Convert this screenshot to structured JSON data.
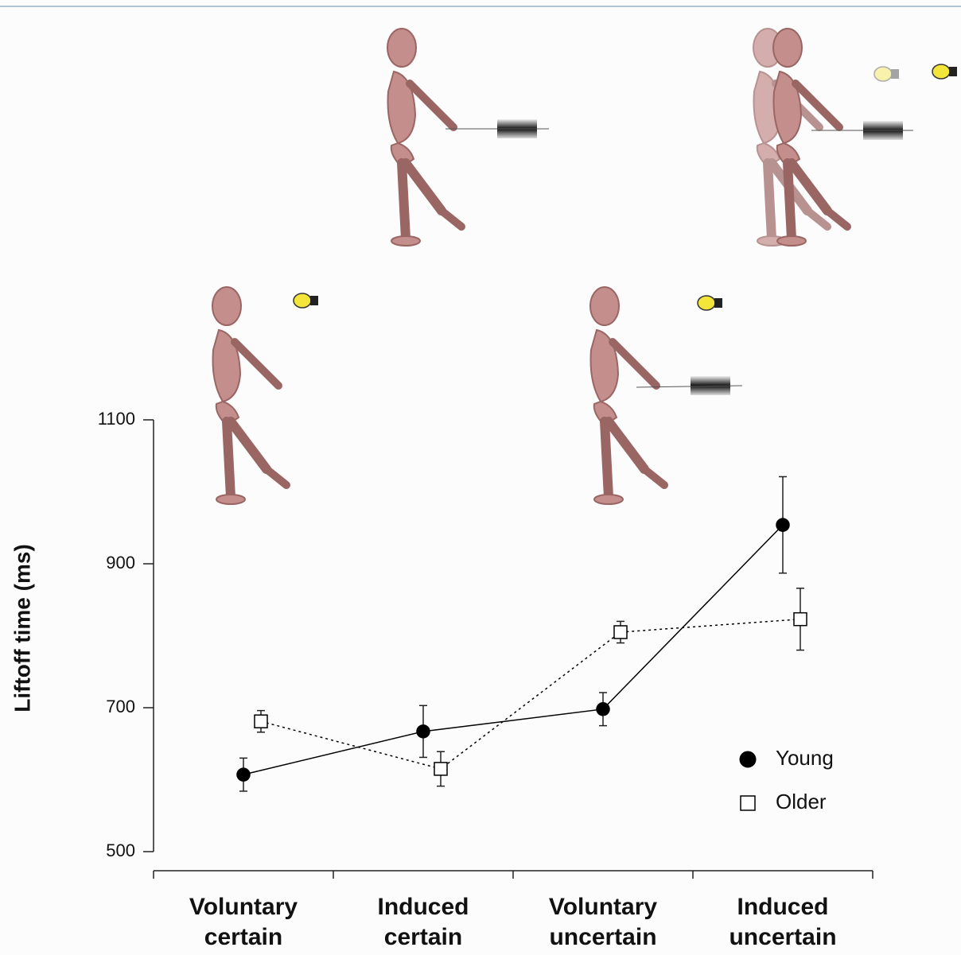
{
  "chart_data": {
    "type": "line",
    "ylabel": "Liftoff time (ms)",
    "categories": [
      "Voluntary certain",
      "Induced certain",
      "Voluntary uncertain",
      "Induced uncertain"
    ],
    "series": [
      {
        "name": "Young",
        "color": "#000000",
        "fill": "#000000",
        "marker": "circle",
        "linestyle": "solid",
        "values": [
          607,
          667,
          698,
          954
        ],
        "errors": [
          23,
          36,
          23,
          67
        ]
      },
      {
        "name": "Older",
        "color": "#000000",
        "fill": "#ffffff",
        "marker": "square",
        "linestyle": "dotted",
        "values": [
          681,
          615,
          805,
          823
        ],
        "errors": [
          15,
          24,
          15,
          43
        ]
      }
    ],
    "ylim": [
      500,
      1100
    ],
    "yticks": [
      500,
      700,
      900,
      1100
    ],
    "grid": false
  }
}
